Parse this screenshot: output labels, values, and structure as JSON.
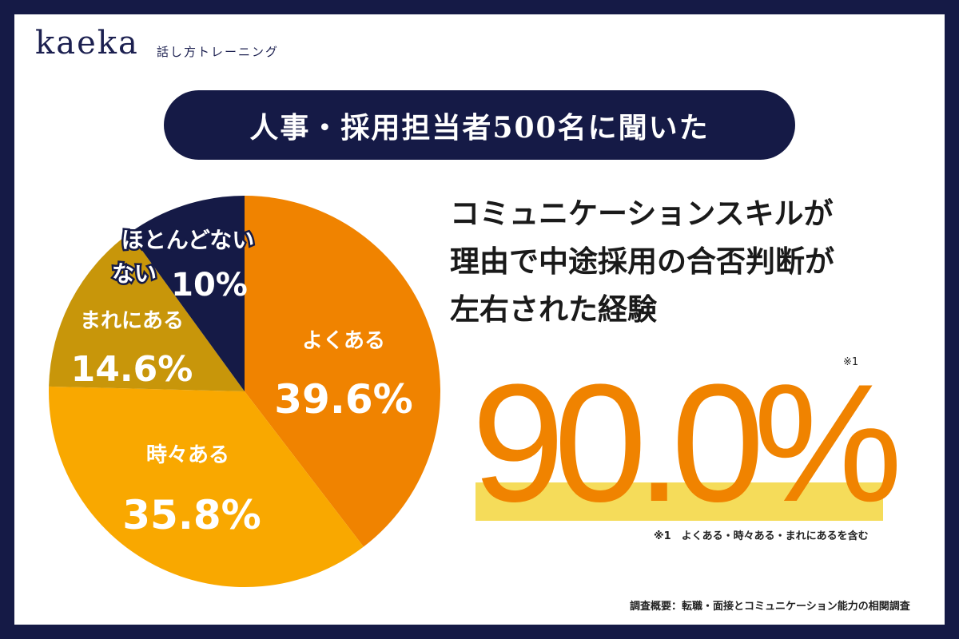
{
  "brand": {
    "logo": "kaeka",
    "subtitle": "話し方トレーニング"
  },
  "title_pill": "人事・採用担当者500名に聞いた",
  "headline": [
    "コミュニケーションスキルが",
    "理由で中途採用の合否判断が",
    "左右された経験"
  ],
  "big_stat": {
    "value": "90.0%",
    "note_mark": "※1"
  },
  "footnote": "※1　よくある・時々ある・まれにあるを含む",
  "source": "調査概要：転職・面接とコミュニケーション能力の相関調査",
  "colors": {
    "frame": "#151a46",
    "often": "#f08300",
    "sometimes": "#f9a800",
    "rarely": "#c8960a",
    "never": "#151a46",
    "highlight": "#f5dc5a"
  },
  "chart_data": {
    "type": "pie",
    "start": "top",
    "direction": "clockwise",
    "slices": [
      {
        "label": "よくある",
        "value": 39.6,
        "display": "39.6%",
        "color": "#f08300"
      },
      {
        "label": "時々ある",
        "value": 35.8,
        "display": "35.8%",
        "color": "#f9a800"
      },
      {
        "label": "まれにある",
        "value": 14.6,
        "display": "14.6%",
        "color": "#c8960a"
      },
      {
        "label": "ほとんどない",
        "label_line2": "ない",
        "value": 10,
        "display": "10%",
        "color": "#151a46"
      }
    ]
  }
}
